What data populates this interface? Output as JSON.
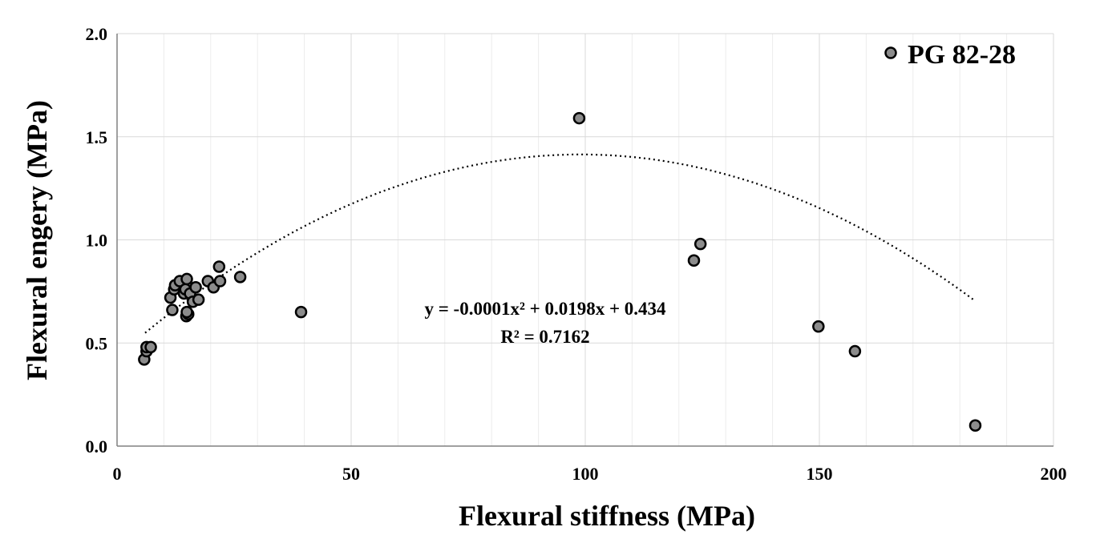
{
  "chart_data": {
    "type": "scatter",
    "xlabel": "Flexural stiffness (MPa)",
    "ylabel": "Flexural engery (MPa)",
    "xlim": [
      0,
      200
    ],
    "ylim": [
      0,
      2.0
    ],
    "x_ticks": [
      "0",
      "50",
      "100",
      "150",
      "200"
    ],
    "y_ticks": [
      "0.0",
      "0.5",
      "1.0",
      "1.5",
      "2.0"
    ],
    "grid": "major and minor",
    "legend_position": "top-right",
    "series": [
      {
        "name": "PG 82-28",
        "marker_color": "#8c8c8c",
        "points": [
          [
            5.8,
            0.42
          ],
          [
            6.3,
            0.46
          ],
          [
            6.3,
            0.48
          ],
          [
            7.2,
            0.48
          ],
          [
            11.4,
            0.72
          ],
          [
            11.8,
            0.66
          ],
          [
            12.2,
            0.76
          ],
          [
            12.4,
            0.78
          ],
          [
            13.4,
            0.8
          ],
          [
            14.3,
            0.74
          ],
          [
            14.6,
            0.76
          ],
          [
            14.9,
            0.81
          ],
          [
            14.8,
            0.63
          ],
          [
            15.2,
            0.64
          ],
          [
            14.9,
            0.65
          ],
          [
            15.6,
            0.74
          ],
          [
            16.2,
            0.7
          ],
          [
            16.8,
            0.77
          ],
          [
            17.4,
            0.71
          ],
          [
            19.4,
            0.8
          ],
          [
            20.6,
            0.77
          ],
          [
            21.8,
            0.87
          ],
          [
            22.0,
            0.8
          ],
          [
            26.3,
            0.82
          ],
          [
            39.3,
            0.65
          ],
          [
            98.7,
            1.59
          ],
          [
            123.2,
            0.9
          ],
          [
            124.6,
            0.98
          ],
          [
            149.8,
            0.58
          ],
          [
            157.6,
            0.46
          ],
          [
            183.3,
            0.1
          ]
        ]
      }
    ],
    "trendline": {
      "type": "polynomial",
      "coefficients": [
        -0.0001,
        0.0198,
        0.434
      ],
      "x_range": [
        6,
        183
      ],
      "equation": "y = -0.0001x² + 0.0198x + 0.434",
      "r_squared": "R² = 0.7162"
    }
  }
}
